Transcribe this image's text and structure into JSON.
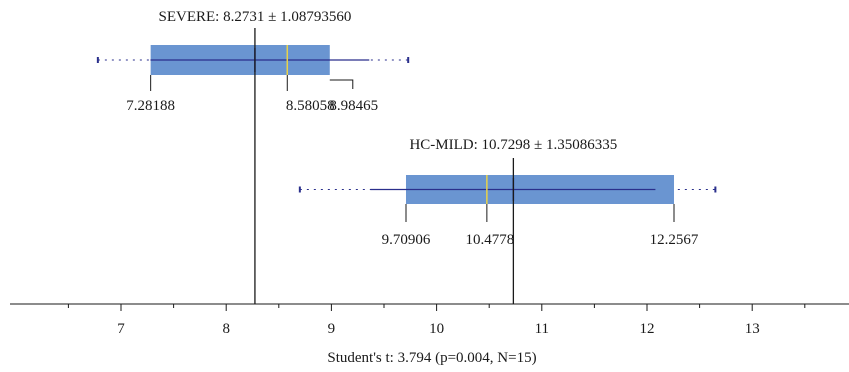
{
  "chart_data": {
    "type": "box",
    "xlim": [
      6.05,
      13.95
    ],
    "xticks": [
      7,
      8,
      9,
      10,
      11,
      12,
      13
    ],
    "xlabel": "Student's t: 3.794 (p=0.004, N=15)",
    "grid": false,
    "series": [
      {
        "name": "SEVERE",
        "mean": 8.2731,
        "sd": 1.0879356,
        "summary_label": "SEVERE: 8.2731 ± 1.08793560",
        "q1": 7.28188,
        "median": 8.58058,
        "q3": 8.98465,
        "whisker_low": 6.78,
        "whisker_high": 9.73,
        "inner_low": 7.28,
        "inner_high": 9.36,
        "q1_label": "7.28188",
        "median_label": "8.58058",
        "q3_label": "8.98465"
      },
      {
        "name": "HC-MILD",
        "mean": 10.7298,
        "sd": 1.35086335,
        "summary_label": "HC-MILD: 10.7298 ± 1.35086335",
        "q1": 9.70906,
        "median": 10.4778,
        "q3": 12.2567,
        "whisker_low": 8.7,
        "whisker_high": 12.65,
        "inner_low": 9.37,
        "inner_high": 12.08,
        "q1_label": "9.70906",
        "median_label": "10.4778",
        "q3_label": "12.2567"
      }
    ],
    "colors": {
      "box_fill": "#6a95d1",
      "mean_line": "#2a2f8c",
      "median_line": "#e8d24a",
      "whisker": "#2a2f8c",
      "axis": "#1a1a1a"
    }
  }
}
